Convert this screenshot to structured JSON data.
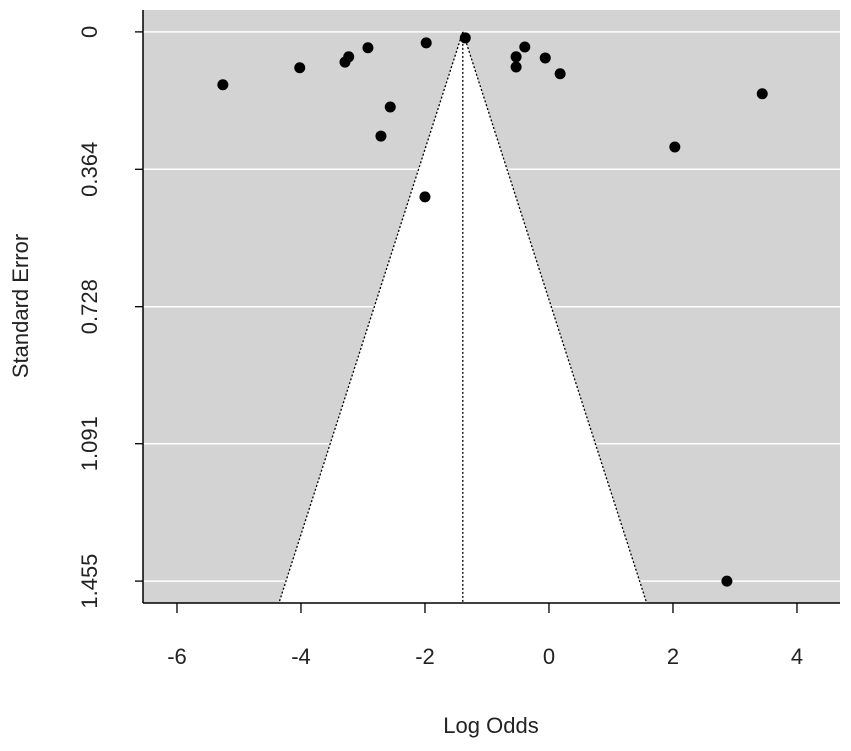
{
  "chart_data": {
    "type": "scatter",
    "xlabel": "Log Odds",
    "ylabel": "Standard Error",
    "x": [
      -5.26,
      -4.02,
      -3.29,
      -3.23,
      -2.92,
      -2.56,
      -2.71,
      -1.98,
      -2.0,
      -1.35,
      -0.53,
      -0.53,
      -0.39,
      -0.06,
      0.18,
      2.03,
      3.44,
      2.87
    ],
    "values": [
      0.14,
      0.095,
      0.08,
      0.066,
      0.042,
      0.199,
      0.276,
      0.029,
      0.437,
      0.016,
      0.066,
      0.093,
      0.04,
      0.069,
      0.111,
      0.305,
      0.164,
      1.455
    ],
    "color": "#000000",
    "funnel_center": -1.39,
    "funnel_z": 1.96,
    "xlim": [
      -6.548,
      4.694
    ],
    "xticks": [
      -6,
      -4,
      -2,
      0,
      2,
      4
    ],
    "ylim": [
      1.513,
      -0.058
    ],
    "yticks": [
      0,
      0.364,
      0.728,
      1.091,
      1.455
    ],
    "background": "#d3d3d3",
    "grid": true
  }
}
